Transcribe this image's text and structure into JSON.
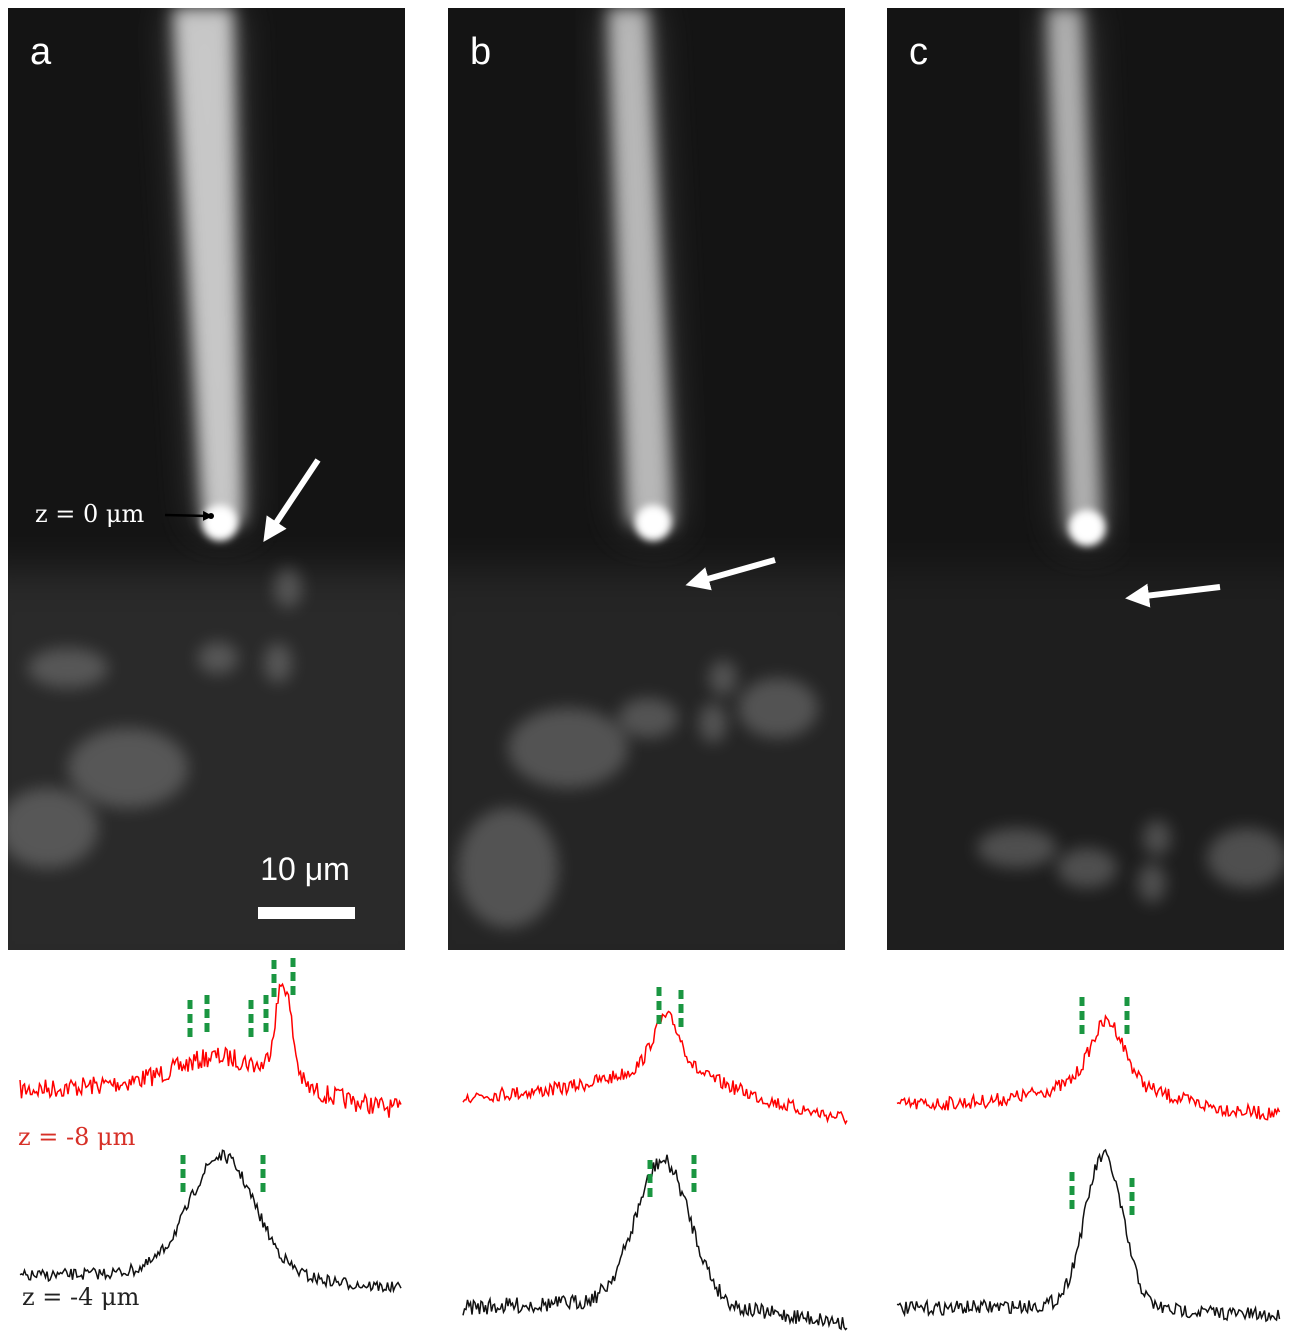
{
  "panels": [
    {
      "label": "a"
    },
    {
      "label": "b"
    },
    {
      "label": "c"
    }
  ],
  "scale_bar": {
    "label": "10 μm"
  },
  "annotation": {
    "label": "z = 0 μm"
  },
  "profiles": {
    "red": {
      "label": "z = -8 μm"
    },
    "black": {
      "label": "z = -4 μm"
    }
  }
}
